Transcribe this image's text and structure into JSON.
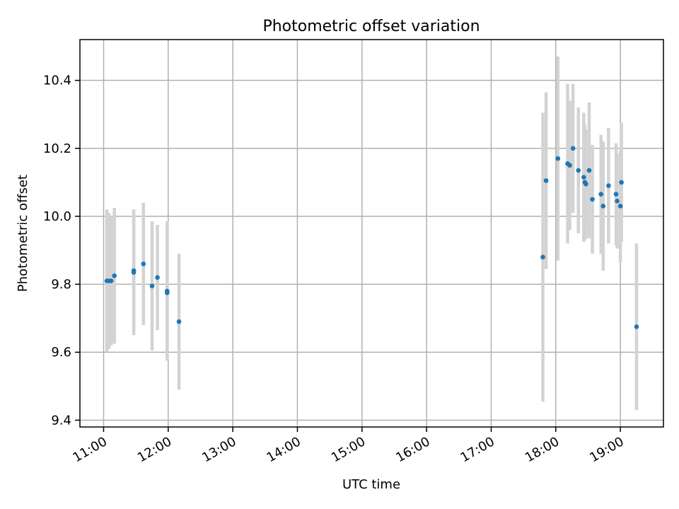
{
  "chart_data": {
    "type": "scatter",
    "title": "Photometric offset variation",
    "xlabel": "UTC time",
    "ylabel": "Photometric offset",
    "grid": true,
    "x_ticks": [
      "11:00",
      "12:00",
      "13:00",
      "14:00",
      "15:00",
      "16:00",
      "17:00",
      "18:00",
      "19:00"
    ],
    "x_tick_hours": [
      11,
      12,
      13,
      14,
      15,
      16,
      17,
      18,
      19
    ],
    "xlim": [
      "10:38",
      "19:40"
    ],
    "y_ticks": [
      "9.4",
      "9.6",
      "9.8",
      "10.0",
      "10.2",
      "10.4"
    ],
    "y_tick_values": [
      9.4,
      9.6,
      9.8,
      10.0,
      10.2,
      10.4
    ],
    "ylim": [
      9.38,
      10.52
    ],
    "colors": {
      "points": "#1f77b4",
      "errorbars": "#d3d3d3"
    },
    "points": [
      {
        "time": "11:03",
        "offset": 9.81,
        "err": 0.21
      },
      {
        "time": "11:05",
        "offset": 9.81,
        "err": 0.2
      },
      {
        "time": "11:07",
        "offset": 9.81,
        "err": 0.19
      },
      {
        "time": "11:10",
        "offset": 9.825,
        "err": 0.2
      },
      {
        "time": "11:28",
        "offset": 9.84,
        "err": 0.18
      },
      {
        "time": "11:28",
        "offset": 9.835,
        "err": 0.185
      },
      {
        "time": "11:37",
        "offset": 9.86,
        "err": 0.18
      },
      {
        "time": "11:45",
        "offset": 9.795,
        "err": 0.19
      },
      {
        "time": "11:50",
        "offset": 9.82,
        "err": 0.155
      },
      {
        "time": "11:59",
        "offset": 9.78,
        "err": 0.205
      },
      {
        "time": "11:59",
        "offset": 9.775,
        "err": 0.2
      },
      {
        "time": "12:10",
        "offset": 9.69,
        "err": 0.2
      },
      {
        "time": "17:48",
        "offset": 9.88,
        "err": 0.425
      },
      {
        "time": "17:51",
        "offset": 10.105,
        "err": 0.26
      },
      {
        "time": "18:02",
        "offset": 10.17,
        "err": 0.3
      },
      {
        "time": "18:11",
        "offset": 10.155,
        "err": 0.235
      },
      {
        "time": "18:13",
        "offset": 10.15,
        "err": 0.19
      },
      {
        "time": "18:16",
        "offset": 10.2,
        "err": 0.19
      },
      {
        "time": "18:21",
        "offset": 10.135,
        "err": 0.185
      },
      {
        "time": "18:26",
        "offset": 10.115,
        "err": 0.19
      },
      {
        "time": "18:27",
        "offset": 10.1,
        "err": 0.17
      },
      {
        "time": "18:28",
        "offset": 10.095,
        "err": 0.16
      },
      {
        "time": "18:31",
        "offset": 10.135,
        "err": 0.2
      },
      {
        "time": "18:34",
        "offset": 10.05,
        "err": 0.16
      },
      {
        "time": "18:42",
        "offset": 10.065,
        "err": 0.175
      },
      {
        "time": "18:44",
        "offset": 10.03,
        "err": 0.19
      },
      {
        "time": "18:49",
        "offset": 10.09,
        "err": 0.17
      },
      {
        "time": "18:56",
        "offset": 10.065,
        "err": 0.15
      },
      {
        "time": "18:57",
        "offset": 10.045,
        "err": 0.14
      },
      {
        "time": "19:00",
        "offset": 10.03,
        "err": 0.165
      },
      {
        "time": "19:01",
        "offset": 10.1,
        "err": 0.175
      },
      {
        "time": "19:15",
        "offset": 9.675,
        "err": 0.245
      }
    ]
  }
}
